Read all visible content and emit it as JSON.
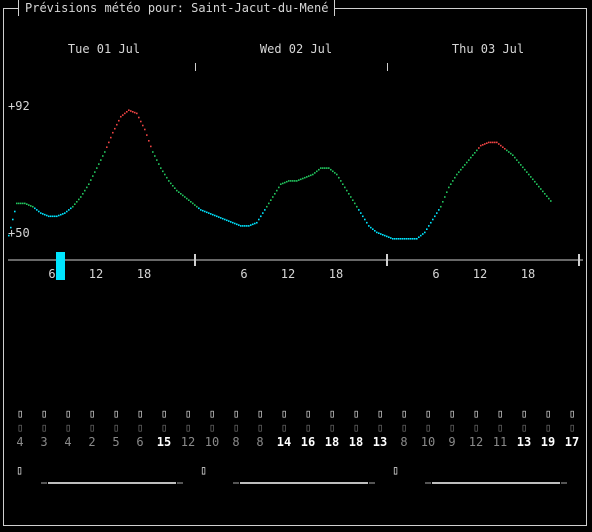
{
  "window": {
    "title": "Prévisions météo pour: Saint-Jacut-du-Mené"
  },
  "days": [
    "Tue 01 Jul",
    "Wed 02 Jul",
    "Thu 03 Jul"
  ],
  "yaxis": {
    "max_label": "+92",
    "min_label": "+50"
  },
  "hour_labels": [
    "6",
    "12",
    "18",
    "6",
    "12",
    "18",
    "6",
    "12",
    "18"
  ],
  "colors": {
    "cold": "#00e5ff",
    "mild": "#22c55e",
    "hot": "#ef4444",
    "axis": "#d0d0d0",
    "marker": "#00e5ff"
  },
  "chart_data": {
    "type": "line",
    "ylim": [
      50,
      92
    ],
    "x_unit": "hours since Tue 01 Jul 00:00",
    "y_unit": "°F",
    "series": [
      {
        "values": [
          [
            0,
            51
          ],
          [
            1,
            61
          ],
          [
            2,
            61
          ],
          [
            3,
            60
          ],
          [
            4,
            58
          ],
          [
            5,
            57
          ],
          [
            6,
            57
          ],
          [
            7,
            58
          ],
          [
            8,
            60
          ],
          [
            9,
            63
          ],
          [
            10,
            67
          ],
          [
            11,
            72
          ],
          [
            12,
            77
          ],
          [
            13,
            83
          ],
          [
            14,
            88
          ],
          [
            15,
            90
          ],
          [
            16,
            89
          ],
          [
            17,
            84
          ],
          [
            18,
            77
          ],
          [
            19,
            72
          ],
          [
            20,
            68
          ],
          [
            21,
            65
          ],
          [
            22,
            63
          ],
          [
            23,
            61
          ],
          [
            24,
            59
          ],
          [
            25,
            58
          ],
          [
            26,
            57
          ],
          [
            27,
            56
          ],
          [
            28,
            55
          ],
          [
            29,
            54
          ],
          [
            30,
            54
          ],
          [
            31,
            55
          ],
          [
            32,
            59
          ],
          [
            33,
            63
          ],
          [
            34,
            67
          ],
          [
            35,
            68
          ],
          [
            36,
            68
          ],
          [
            37,
            69
          ],
          [
            38,
            70
          ],
          [
            39,
            72
          ],
          [
            40,
            72
          ],
          [
            41,
            70
          ],
          [
            42,
            66
          ],
          [
            43,
            62
          ],
          [
            44,
            58
          ],
          [
            45,
            54
          ],
          [
            46,
            52
          ],
          [
            47,
            51
          ],
          [
            48,
            50
          ],
          [
            49,
            50
          ],
          [
            50,
            50
          ],
          [
            51,
            50
          ],
          [
            52,
            52
          ],
          [
            53,
            56
          ],
          [
            54,
            60
          ],
          [
            55,
            66
          ],
          [
            56,
            70
          ],
          [
            57,
            73
          ],
          [
            58,
            76
          ],
          [
            59,
            79
          ],
          [
            60,
            80
          ],
          [
            61,
            80
          ],
          [
            62,
            78
          ],
          [
            63,
            76
          ],
          [
            64,
            73
          ],
          [
            65,
            70
          ],
          [
            66,
            67
          ],
          [
            67,
            64
          ],
          [
            68,
            61
          ]
        ]
      }
    ]
  },
  "forecast": [
    {
      "icon": "▯",
      "temp": "4",
      "bright": false
    },
    {
      "icon": "▯",
      "temp": "3",
      "bright": false
    },
    {
      "icon": "▯",
      "temp": "4",
      "bright": false
    },
    {
      "icon": "▯",
      "temp": "2",
      "bright": false
    },
    {
      "icon": "▯",
      "temp": "5",
      "bright": false
    },
    {
      "icon": "▯",
      "temp": "6",
      "bright": false
    },
    {
      "icon": "▯",
      "temp": "15",
      "bright": true
    },
    {
      "icon": "▯",
      "temp": "12",
      "bright": false
    },
    {
      "icon": "▯",
      "temp": "10",
      "bright": false
    },
    {
      "icon": "▯",
      "temp": "8",
      "bright": false
    },
    {
      "icon": "▯",
      "temp": "8",
      "bright": false
    },
    {
      "icon": "▯",
      "temp": "14",
      "bright": true
    },
    {
      "icon": "▯",
      "temp": "16",
      "bright": true
    },
    {
      "icon": "▯",
      "temp": "18",
      "bright": true
    },
    {
      "icon": "▯",
      "temp": "18",
      "bright": true
    },
    {
      "icon": "▯",
      "temp": "13",
      "bright": true
    },
    {
      "icon": "▯",
      "temp": "8",
      "bright": false
    },
    {
      "icon": "▯",
      "temp": "10",
      "bright": false
    },
    {
      "icon": "▯",
      "temp": "9",
      "bright": false
    },
    {
      "icon": "▯",
      "temp": "12",
      "bright": false
    },
    {
      "icon": "▯",
      "temp": "11",
      "bright": false
    },
    {
      "icon": "▯",
      "temp": "13",
      "bright": true
    },
    {
      "icon": "▯",
      "temp": "19",
      "bright": true
    },
    {
      "icon": "▯",
      "temp": "17",
      "bright": true
    }
  ],
  "day_summary": [
    {
      "icon": "▯"
    },
    {
      "icon": "▯"
    },
    {
      "icon": "▯"
    }
  ]
}
